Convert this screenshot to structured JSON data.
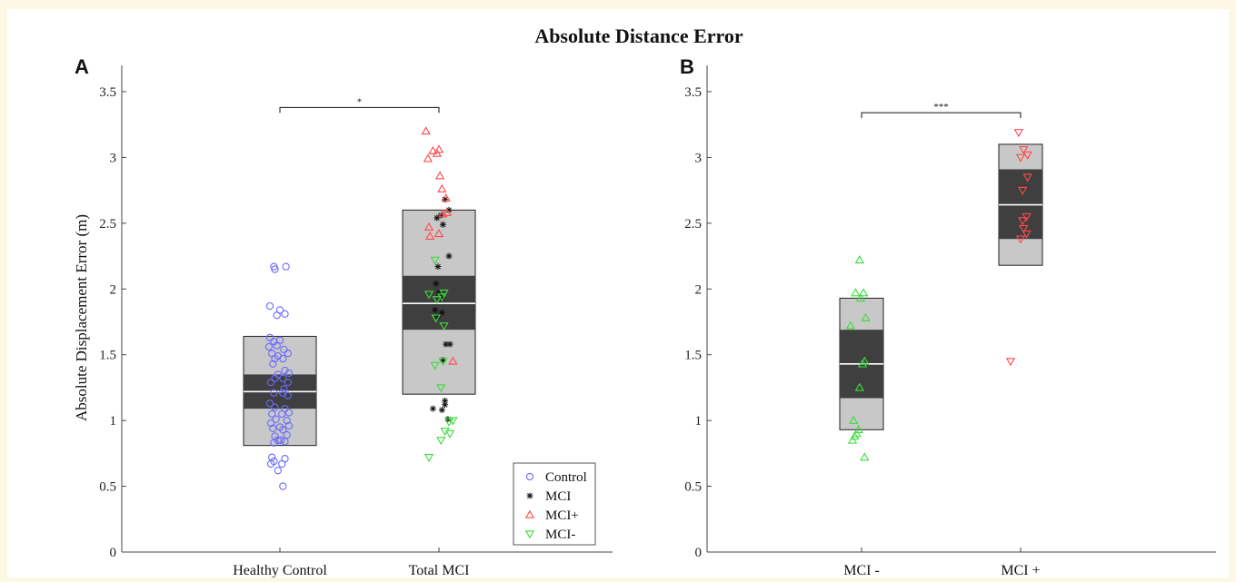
{
  "figure": {
    "title": "Absolute Distance Error",
    "ylabel": "Absolute Displacement Error (m)",
    "panels": [
      "A",
      "B"
    ]
  },
  "legend": {
    "entries": [
      {
        "label": "Control",
        "marker": "circle",
        "color": "#6b6bff"
      },
      {
        "label": "MCI",
        "marker": "star",
        "color": "#111111"
      },
      {
        "label": "MCI+",
        "marker": "triangle-up",
        "color": "#ff4a4a"
      },
      {
        "label": "MCI-",
        "marker": "triangle-down",
        "color": "#3ddc3d"
      }
    ]
  },
  "colors": {
    "box_outer": "#c8c8c8",
    "box_inner": "#3f3f3f",
    "mean_line": "#ffffff"
  },
  "chart_data": [
    {
      "panel": "A",
      "type": "scatter",
      "title": "Absolute Distance Error",
      "ylabel": "Absolute Displacement Error (m)",
      "xlabel": "",
      "ylim": [
        0,
        3.7
      ],
      "yticks": [
        0,
        0.5,
        1,
        1.5,
        2,
        2.5,
        3,
        3.5
      ],
      "ytick_labels": [
        "0",
        "0.5",
        "1",
        "1.5",
        "2",
        "2.5",
        "3",
        "3.5"
      ],
      "categories": [
        "Healthy Control",
        "Total MCI"
      ],
      "boxes": [
        {
          "category": "Healthy Control",
          "mean": 1.22,
          "inner": [
            1.09,
            1.35
          ],
          "outer": [
            0.81,
            1.64
          ]
        },
        {
          "category": "Total MCI",
          "mean": 1.89,
          "inner": [
            1.69,
            2.1
          ],
          "outer": [
            1.2,
            2.6
          ]
        }
      ],
      "significance": [
        {
          "from": "Healthy Control",
          "to": "Total MCI",
          "y": 3.38,
          "label": "*"
        }
      ],
      "series": [
        {
          "name": "Control",
          "category": "Healthy Control",
          "marker": "circle",
          "color": "#6b6bff",
          "points": [
            [
              -0.06,
              2.17
            ],
            [
              0.06,
              2.17
            ],
            [
              -0.05,
              2.15
            ],
            [
              -0.1,
              1.87
            ],
            [
              0.0,
              1.84
            ],
            [
              -0.03,
              1.8
            ],
            [
              0.05,
              1.81
            ],
            [
              -0.1,
              1.63
            ],
            [
              -0.06,
              1.6
            ],
            [
              0.0,
              1.61
            ],
            [
              -0.03,
              1.57
            ],
            [
              -0.11,
              1.56
            ],
            [
              0.04,
              1.54
            ],
            [
              -0.08,
              1.51
            ],
            [
              -0.02,
              1.49
            ],
            [
              0.08,
              1.51
            ],
            [
              -0.05,
              1.47
            ],
            [
              0.03,
              1.47
            ],
            [
              -0.07,
              1.43
            ],
            [
              0.05,
              1.38
            ],
            [
              -0.02,
              1.35
            ],
            [
              0.09,
              1.36
            ],
            [
              -0.05,
              1.32
            ],
            [
              0.03,
              1.32
            ],
            [
              0.08,
              1.29
            ],
            [
              -0.09,
              1.29
            ],
            [
              0.04,
              1.24
            ],
            [
              -0.06,
              1.21
            ],
            [
              0.03,
              1.21
            ],
            [
              0.08,
              1.19
            ],
            [
              -0.1,
              1.13
            ],
            [
              -0.05,
              1.1
            ],
            [
              0.05,
              1.09
            ],
            [
              -0.08,
              1.05
            ],
            [
              0.02,
              1.05
            ],
            [
              0.09,
              1.06
            ],
            [
              -0.04,
              1.01
            ],
            [
              0.07,
              1.0
            ],
            [
              -0.09,
              0.98
            ],
            [
              0.09,
              0.96
            ],
            [
              0.0,
              0.95
            ],
            [
              -0.07,
              0.94
            ],
            [
              0.03,
              0.93
            ],
            [
              0.07,
              0.89
            ],
            [
              -0.05,
              0.88
            ],
            [
              -0.02,
              0.85
            ],
            [
              0.05,
              0.84
            ],
            [
              -0.06,
              0.83
            ],
            [
              0.01,
              0.85
            ],
            [
              -0.08,
              0.72
            ],
            [
              -0.06,
              0.69
            ],
            [
              -0.09,
              0.67
            ],
            [
              0.02,
              0.67
            ],
            [
              0.05,
              0.71
            ],
            [
              -0.02,
              0.62
            ],
            [
              0.03,
              0.5
            ]
          ]
        },
        {
          "name": "MCI",
          "category": "Total MCI",
          "marker": "star",
          "color": "#111111",
          "points": [
            [
              0.06,
              2.68
            ],
            [
              0.02,
              2.56
            ],
            [
              -0.02,
              2.54
            ],
            [
              0.04,
              2.49
            ],
            [
              0.1,
              2.6
            ],
            [
              0.1,
              2.25
            ],
            [
              -0.01,
              2.17
            ],
            [
              -0.03,
              2.04
            ],
            [
              0.0,
              1.97
            ],
            [
              0.03,
              1.93
            ],
            [
              -0.04,
              1.84
            ],
            [
              0.03,
              1.82
            ],
            [
              -0.01,
              1.79
            ],
            [
              0.07,
              1.58
            ],
            [
              0.11,
              1.58
            ],
            [
              0.04,
              1.46
            ],
            [
              0.06,
              1.15
            ],
            [
              0.06,
              1.12
            ],
            [
              -0.06,
              1.09
            ],
            [
              0.03,
              1.08
            ],
            [
              0.09,
              1.01
            ]
          ]
        },
        {
          "name": "MCI+",
          "category": "Total MCI",
          "marker": "triangle-up",
          "color": "#ff4a4a",
          "points": [
            [
              -0.13,
              3.2
            ],
            [
              0.0,
              3.06
            ],
            [
              -0.06,
              3.05
            ],
            [
              -0.11,
              2.99
            ],
            [
              -0.02,
              3.03
            ],
            [
              0.01,
              2.86
            ],
            [
              0.03,
              2.76
            ],
            [
              0.07,
              2.69
            ],
            [
              0.04,
              2.57
            ],
            [
              0.08,
              2.58
            ],
            [
              -0.1,
              2.47
            ],
            [
              -0.09,
              2.4
            ],
            [
              0.0,
              2.42
            ],
            [
              0.14,
              1.45
            ]
          ]
        },
        {
          "name": "MCI-",
          "category": "Total MCI",
          "marker": "triangle-down",
          "color": "#3ddc3d",
          "points": [
            [
              -0.04,
              2.22
            ],
            [
              -0.1,
              1.96
            ],
            [
              -0.02,
              1.92
            ],
            [
              0.05,
              1.97
            ],
            [
              0.03,
              1.94
            ],
            [
              -0.03,
              1.78
            ],
            [
              0.05,
              1.72
            ],
            [
              -0.04,
              1.42
            ],
            [
              0.04,
              1.45
            ],
            [
              0.02,
              1.25
            ],
            [
              0.14,
              1.0
            ],
            [
              0.1,
              0.99
            ],
            [
              0.06,
              0.92
            ],
            [
              0.11,
              0.9
            ],
            [
              0.02,
              0.85
            ],
            [
              -0.1,
              0.72
            ]
          ]
        }
      ]
    },
    {
      "panel": "B",
      "type": "scatter",
      "title": "",
      "ylabel": "",
      "xlabel": "",
      "ylim": [
        0,
        3.7
      ],
      "yticks": [
        0,
        0.5,
        1,
        1.5,
        2,
        2.5,
        3,
        3.5
      ],
      "ytick_labels": [
        "0",
        "0.5",
        "1",
        "1.5",
        "2",
        "2.5",
        "3",
        "3.5"
      ],
      "categories": [
        "MCI -",
        "MCI +"
      ],
      "boxes": [
        {
          "category": "MCI -",
          "mean": 1.43,
          "inner": [
            1.17,
            1.69
          ],
          "outer": [
            0.93,
            1.93
          ]
        },
        {
          "category": "MCI +",
          "mean": 2.64,
          "inner": [
            2.38,
            2.91
          ],
          "outer": [
            2.18,
            3.1
          ]
        }
      ],
      "significance": [
        {
          "from": "MCI -",
          "to": "MCI +",
          "y": 3.34,
          "label": "***"
        }
      ],
      "series": [
        {
          "name": "MCI-",
          "category": "MCI -",
          "marker": "triangle-up",
          "color": "#3ddc3d",
          "points": [
            [
              -0.02,
              2.22
            ],
            [
              -0.06,
              1.97
            ],
            [
              0.02,
              1.97
            ],
            [
              -0.01,
              1.93
            ],
            [
              0.04,
              1.78
            ],
            [
              -0.11,
              1.72
            ],
            [
              0.03,
              1.45
            ],
            [
              0.01,
              1.43
            ],
            [
              -0.02,
              1.25
            ],
            [
              -0.08,
              1.0
            ],
            [
              -0.03,
              0.93
            ],
            [
              -0.05,
              0.9
            ],
            [
              -0.07,
              0.88
            ],
            [
              -0.09,
              0.85
            ],
            [
              0.03,
              0.72
            ]
          ]
        },
        {
          "name": "MCI+",
          "category": "MCI +",
          "marker": "triangle-down",
          "color": "#ff4a4a",
          "points": [
            [
              -0.02,
              3.19
            ],
            [
              0.03,
              3.06
            ],
            [
              0.0,
              3.0
            ],
            [
              0.07,
              3.02
            ],
            [
              0.07,
              2.85
            ],
            [
              0.02,
              2.75
            ],
            [
              0.06,
              2.55
            ],
            [
              0.02,
              2.52
            ],
            [
              0.06,
              2.42
            ],
            [
              0.03,
              2.46
            ],
            [
              0.0,
              2.38
            ],
            [
              -0.1,
              1.45
            ]
          ]
        }
      ]
    }
  ]
}
